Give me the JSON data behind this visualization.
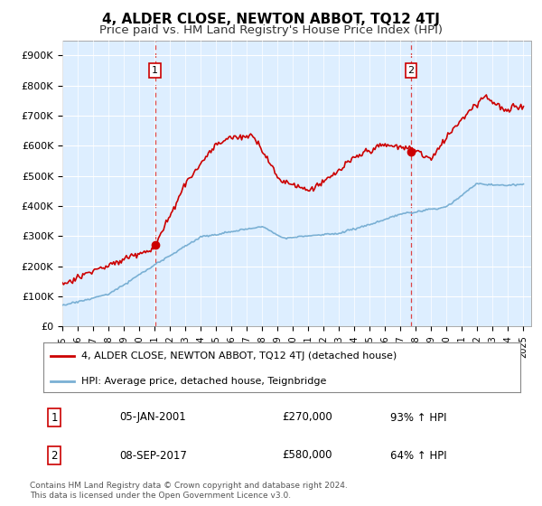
{
  "title": "4, ALDER CLOSE, NEWTON ABBOT, TQ12 4TJ",
  "subtitle": "Price paid vs. HM Land Registry's House Price Index (HPI)",
  "title_fontsize": 11,
  "subtitle_fontsize": 9.5,
  "ylabel_ticks": [
    "£0",
    "£100K",
    "£200K",
    "£300K",
    "£400K",
    "£500K",
    "£600K",
    "£700K",
    "£800K",
    "£900K"
  ],
  "ytick_values": [
    0,
    100000,
    200000,
    300000,
    400000,
    500000,
    600000,
    700000,
    800000,
    900000
  ],
  "ylim": [
    0,
    950000
  ],
  "xlim_start": 1995.3,
  "xlim_end": 2025.5,
  "sale1_x": 2001.03,
  "sale1_y": 270000,
  "sale1_label": "1",
  "sale2_x": 2017.69,
  "sale2_y": 580000,
  "sale2_label": "2",
  "sale_color": "#cc0000",
  "hpi_color": "#7ab0d4",
  "hpi_bg_color": "#ddeeff",
  "vline_color": "#dd4444",
  "annotation_box_color": "#cc0000",
  "legend_line1": "4, ALDER CLOSE, NEWTON ABBOT, TQ12 4TJ (detached house)",
  "legend_line2": "HPI: Average price, detached house, Teignbridge",
  "note_line1": "Contains HM Land Registry data © Crown copyright and database right 2024.",
  "note_line2": "This data is licensed under the Open Government Licence v3.0.",
  "table_row1_num": "1",
  "table_row1_date": "05-JAN-2001",
  "table_row1_price": "£270,000",
  "table_row1_hpi": "93% ↑ HPI",
  "table_row2_num": "2",
  "table_row2_date": "08-SEP-2017",
  "table_row2_price": "£580,000",
  "table_row2_hpi": "64% ↑ HPI",
  "background_color": "#ffffff",
  "plot_bg_color": "#ddeeff",
  "grid_color": "#ffffff"
}
